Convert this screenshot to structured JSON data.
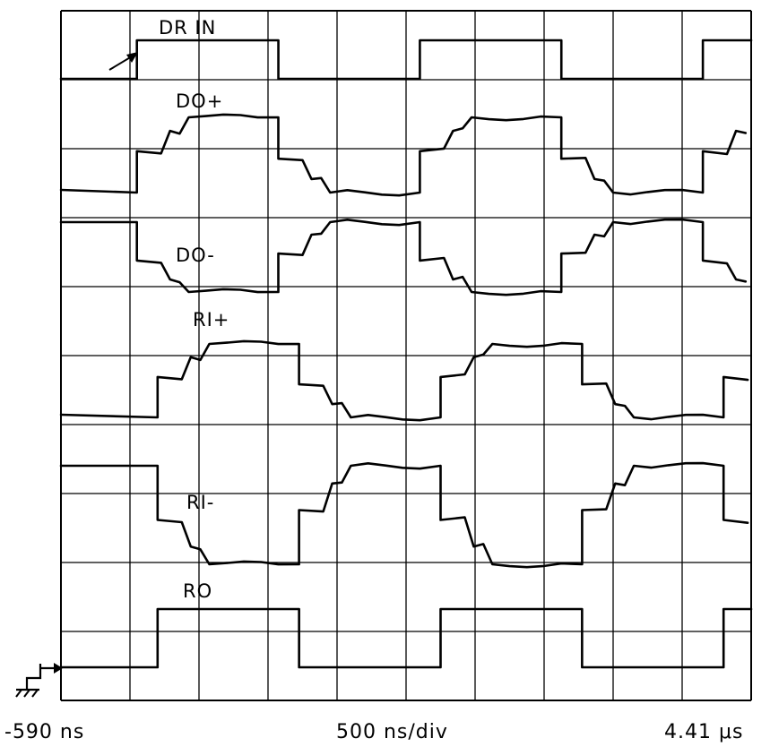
{
  "chart_data": {
    "type": "line",
    "time_start_label": "-590 ns",
    "time_per_div_label": "500 ns/div",
    "time_end_label": "4.41 μs",
    "x_divisions": 10,
    "y_divisions": 10,
    "ground_marker": "ground-symbol",
    "series": [
      {
        "name": "DR IN",
        "shape": "square",
        "period_div": 4.1,
        "first_rising_edge_div": 1.1,
        "duty": 0.5
      },
      {
        "name": "DO+",
        "shape": "stepped",
        "period_div": 4.1,
        "first_rising_edge_div": 1.1,
        "duty": 0.5
      },
      {
        "name": "DO-",
        "shape": "stepped-inverted",
        "period_div": 4.1,
        "first_rising_edge_div": 1.1,
        "duty": 0.5
      },
      {
        "name": "RI+",
        "shape": "stepped",
        "period_div": 4.1,
        "first_rising_edge_div": 1.4,
        "duty": 0.5
      },
      {
        "name": "RI-",
        "shape": "stepped-inverted",
        "period_div": 4.1,
        "first_rising_edge_div": 1.4,
        "duty": 0.5
      },
      {
        "name": "RO",
        "shape": "square",
        "period_div": 4.1,
        "first_rising_edge_div": 1.4,
        "duty": 0.5
      }
    ]
  }
}
